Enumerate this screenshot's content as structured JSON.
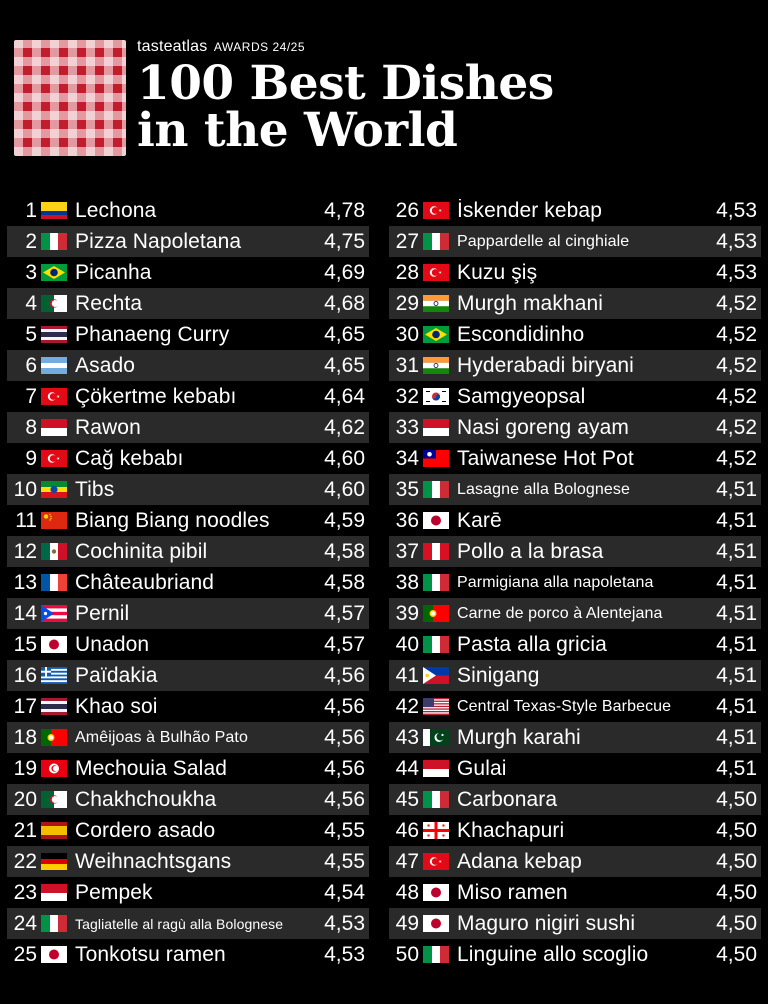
{
  "header": {
    "brand": "tasteatlas",
    "awards": "AWARDS 24/25",
    "title_line1": "100 Best Dishes",
    "title_line2": "in the World"
  },
  "colors": {
    "accent": "#c21d2d",
    "row_shade": "#2a2a2a",
    "background": "#000000"
  },
  "dishes": [
    {
      "rank": "1",
      "flag": "colombia",
      "name": "Lechona",
      "score": "4,78"
    },
    {
      "rank": "2",
      "flag": "italy",
      "name": "Pizza Napoletana",
      "score": "4,75"
    },
    {
      "rank": "3",
      "flag": "brazil",
      "name": "Picanha",
      "score": "4,69"
    },
    {
      "rank": "4",
      "flag": "algeria",
      "name": "Rechta",
      "score": "4,68"
    },
    {
      "rank": "5",
      "flag": "thailand",
      "name": "Phanaeng Curry",
      "score": "4,65"
    },
    {
      "rank": "6",
      "flag": "argentina",
      "name": "Asado",
      "score": "4,65"
    },
    {
      "rank": "7",
      "flag": "turkey",
      "name": "Çökertme kebabı",
      "score": "4,64"
    },
    {
      "rank": "8",
      "flag": "indonesia",
      "name": "Rawon",
      "score": "4,62"
    },
    {
      "rank": "9",
      "flag": "turkey",
      "name": "Cağ kebabı",
      "score": "4,60"
    },
    {
      "rank": "10",
      "flag": "ethiopia",
      "name": "Tibs",
      "score": "4,60"
    },
    {
      "rank": "11",
      "flag": "china",
      "name": "Biang Biang noodles",
      "score": "4,59"
    },
    {
      "rank": "12",
      "flag": "mexico",
      "name": "Cochinita pibil",
      "score": "4,58"
    },
    {
      "rank": "13",
      "flag": "france",
      "name": "Châteaubriand",
      "score": "4,58"
    },
    {
      "rank": "14",
      "flag": "puertorico",
      "name": "Pernil",
      "score": "4,57"
    },
    {
      "rank": "15",
      "flag": "japan",
      "name": "Unadon",
      "score": "4,57"
    },
    {
      "rank": "16",
      "flag": "greece",
      "name": "Païdakia",
      "score": "4,56"
    },
    {
      "rank": "17",
      "flag": "thailand",
      "name": "Khao soi",
      "score": "4,56"
    },
    {
      "rank": "18",
      "flag": "portugal",
      "name": "Amêijoas à Bulhão Pato",
      "score": "4,56"
    },
    {
      "rank": "19",
      "flag": "tunisia",
      "name": "Mechouia Salad",
      "score": "4,56"
    },
    {
      "rank": "20",
      "flag": "algeria",
      "name": "Chakhchoukha",
      "score": "4,56"
    },
    {
      "rank": "21",
      "flag": "spain",
      "name": "Cordero asado",
      "score": "4,55"
    },
    {
      "rank": "22",
      "flag": "germany",
      "name": "Weihnachtsgans",
      "score": "4,55"
    },
    {
      "rank": "23",
      "flag": "indonesia",
      "name": "Pempek",
      "score": "4,54"
    },
    {
      "rank": "24",
      "flag": "italy",
      "name": "Tagliatelle al ragù alla Bolognese",
      "score": "4,53"
    },
    {
      "rank": "25",
      "flag": "japan",
      "name": "Tonkotsu ramen",
      "score": "4,53"
    },
    {
      "rank": "26",
      "flag": "turkey",
      "name": "İskender kebap",
      "score": "4,53"
    },
    {
      "rank": "27",
      "flag": "italy",
      "name": "Pappardelle al cinghiale",
      "score": "4,53"
    },
    {
      "rank": "28",
      "flag": "turkey",
      "name": "Kuzu şiş",
      "score": "4,53"
    },
    {
      "rank": "29",
      "flag": "india",
      "name": "Murgh makhani",
      "score": "4,52"
    },
    {
      "rank": "30",
      "flag": "brazil",
      "name": "Escondidinho",
      "score": "4,52"
    },
    {
      "rank": "31",
      "flag": "india",
      "name": "Hyderabadi biryani",
      "score": "4,52"
    },
    {
      "rank": "32",
      "flag": "southkorea",
      "name": "Samgyeopsal",
      "score": "4,52"
    },
    {
      "rank": "33",
      "flag": "indonesia",
      "name": "Nasi goreng ayam",
      "score": "4,52"
    },
    {
      "rank": "34",
      "flag": "taiwan",
      "name": "Taiwanese Hot Pot",
      "score": "4,52"
    },
    {
      "rank": "35",
      "flag": "italy",
      "name": "Lasagne alla Bolognese",
      "score": "4,51"
    },
    {
      "rank": "36",
      "flag": "japan",
      "name": "Karē",
      "score": "4,51"
    },
    {
      "rank": "37",
      "flag": "peru",
      "name": "Pollo a la brasa",
      "score": "4,51"
    },
    {
      "rank": "38",
      "flag": "italy",
      "name": "Parmigiana alla napoletana",
      "score": "4,51"
    },
    {
      "rank": "39",
      "flag": "portugal",
      "name": "Carne de porco à Alentejana",
      "score": "4,51"
    },
    {
      "rank": "40",
      "flag": "italy",
      "name": "Pasta alla gricia",
      "score": "4,51"
    },
    {
      "rank": "41",
      "flag": "philippines",
      "name": "Sinigang",
      "score": "4,51"
    },
    {
      "rank": "42",
      "flag": "usa",
      "name": "Central Texas-Style Barbecue",
      "score": "4,51"
    },
    {
      "rank": "43",
      "flag": "pakistan",
      "name": "Murgh karahi",
      "score": "4,51"
    },
    {
      "rank": "44",
      "flag": "indonesia",
      "name": "Gulai",
      "score": "4,51"
    },
    {
      "rank": "45",
      "flag": "italy",
      "name": "Carbonara",
      "score": "4,50"
    },
    {
      "rank": "46",
      "flag": "georgia",
      "name": "Khachapuri",
      "score": "4,50"
    },
    {
      "rank": "47",
      "flag": "turkey",
      "name": "Adana kebap",
      "score": "4,50"
    },
    {
      "rank": "48",
      "flag": "japan",
      "name": "Miso ramen",
      "score": "4,50"
    },
    {
      "rank": "49",
      "flag": "japan",
      "name": "Maguro nigiri sushi",
      "score": "4,50"
    },
    {
      "rank": "50",
      "flag": "italy",
      "name": "Linguine allo scoglio",
      "score": "4,50"
    }
  ]
}
